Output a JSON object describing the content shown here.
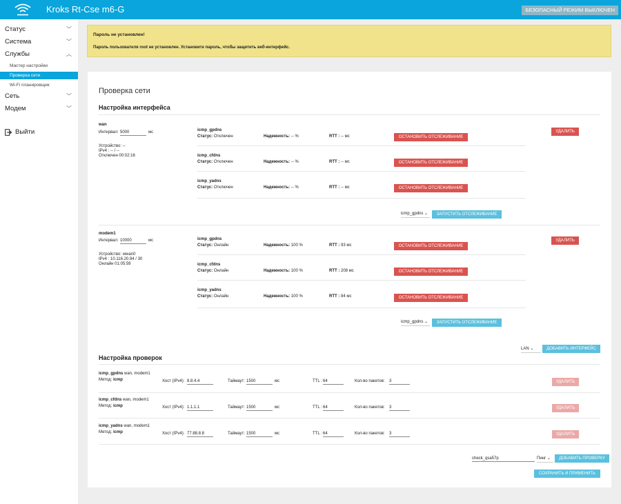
{
  "header": {
    "title": "Kroks Rt-Cse m6-G",
    "safe_mode_button": "БЕЗОПАСНЫЙ РЕЖИМ ВЫКЛЮЧЕН"
  },
  "sidebar": {
    "status": "Статус",
    "system": "Система",
    "services": "Службы",
    "sub": [
      "Мастер настройки",
      "Проверка сети",
      "Wi-Fi планировщик"
    ],
    "network": "Сеть",
    "modem": "Модем",
    "logout": "Выйти"
  },
  "warning": {
    "title": "Пароль не установлен!",
    "text": "Пароль пользователя root не установлен. Установите пароль, чтобы защитить веб-интерфейс."
  },
  "page": {
    "title": "Проверка сети",
    "iface_section": "Настройка интерфейса",
    "checks_section": "Настройка проверок"
  },
  "labels": {
    "interval": "Интервал:",
    "ms": "мс",
    "status": "Статус:",
    "reliability": "Надежность:",
    "rtt": "RTT :",
    "stop": "ОСТАНОВИТЬ ОТСЛЕЖИВАНИЕ",
    "delete": "УДАЛИТЬ",
    "start": "ЗАПУСТИТЬ ОТСЛЕЖИВАНИЕ",
    "add_iface": "ДОБАВИТЬ ИНТЕРФЕЙС",
    "method": "Метод:",
    "host": "Хост (IPv4):",
    "timeout": "Таймаут:",
    "ttl": "TTL :",
    "packets": "Кол-во пакетов:",
    "add_check": "ДОБАВИТЬ ПРОВЕРКУ",
    "save": "СОХРАНИТЬ И ПРИМЕНИТЬ"
  },
  "interfaces": [
    {
      "name": "wan",
      "interval": "5000",
      "info": [
        "Устройство: --",
        "IPv4 : -- / --",
        "Отключен 00:02:16"
      ],
      "checks": [
        {
          "name": "icmp_gpdns",
          "status": "Отключен",
          "reliability": "-- %",
          "rtt": "-- мс"
        },
        {
          "name": "icmp_cfdns",
          "status": "Отключен",
          "reliability": "-- %",
          "rtt": "-- мс"
        },
        {
          "name": "icmp_yadns",
          "status": "Отключен",
          "reliability": "-- %",
          "rtt": "-- мс"
        }
      ],
      "select": "icmp_gpdns"
    },
    {
      "name": "modem1",
      "interval": "10000",
      "info": [
        "Устройство: wwan0",
        "IPv4 : 10.116.20.94 / 30",
        "Онлайн 01:05:59"
      ],
      "checks": [
        {
          "name": "icmp_gpdns",
          "status": "Онлайн",
          "reliability": "100 %",
          "rtt": "93 мс"
        },
        {
          "name": "icmp_cfdns",
          "status": "Онлайн",
          "reliability": "100 %",
          "rtt": "208 мс"
        },
        {
          "name": "icmp_yadns",
          "status": "Онлайн",
          "reliability": "100 %",
          "rtt": "84 мс"
        }
      ],
      "select": "icmp_gpdns"
    }
  ],
  "iface_select": "LAN",
  "checks": [
    {
      "name": "icmp_gpdns",
      "ifaces": "wan, modem1",
      "method": "icmp",
      "host": "8.8.4.4",
      "timeout": "1500",
      "ttl": "64",
      "packets": "3"
    },
    {
      "name": "icmp_cfdns",
      "ifaces": "wan, modem1",
      "method": "icmp",
      "host": "1.1.1.1",
      "timeout": "1500",
      "ttl": "64",
      "packets": "3"
    },
    {
      "name": "icmp_yadns",
      "ifaces": "wan, modem1",
      "method": "icmp",
      "host": "77.88.8.8",
      "timeout": "1500",
      "ttl": "64",
      "packets": "3"
    }
  ],
  "new_check": {
    "name": "check_qsa57p",
    "type": "Пинг"
  },
  "colors": {
    "header": "#09a5dc",
    "danger": "#d9534f",
    "info": "#5bc0de",
    "warning": "#f1e38c"
  }
}
